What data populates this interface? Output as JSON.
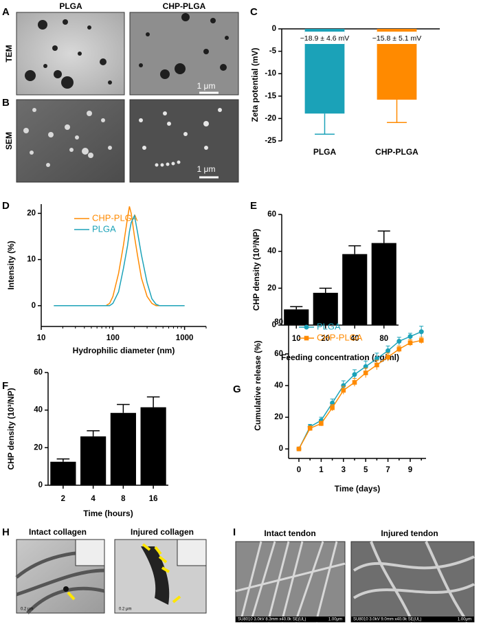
{
  "figure": {
    "panels": [
      "A",
      "B",
      "C",
      "D",
      "E",
      "F",
      "G",
      "H",
      "I"
    ],
    "ab": {
      "columns": [
        "PLGA",
        "CHP-PLGA"
      ],
      "rows": [
        "TEM",
        "SEM"
      ],
      "scale_bar": "1 μm"
    },
    "h": {
      "columns": [
        "Intact collagen",
        "Injured collagen"
      ],
      "scale_bar": "0.2 μm"
    },
    "i": {
      "columns": [
        "Intact tendon",
        "Injured tendon"
      ],
      "footers": [
        "SU8010 3.0kV 8.3mm x40.0k SE(UL)",
        "SU8010 3.0kV 9.0mm x40.0k SE(UL)"
      ],
      "scale_bar": "1.00μm"
    }
  },
  "chart_data": [
    {
      "type": "bar",
      "ylabel": "Zeta potential (mV)",
      "categories": [
        "PLGA",
        "CHP-PLGA"
      ],
      "values": [
        -18.9,
        -15.8
      ],
      "errors": [
        4.6,
        5.1
      ],
      "value_labels": [
        "−18.9 ± 4.6 mV",
        "−15.8 ± 5.1 mV"
      ],
      "colors": [
        "#1ba2b8",
        "#ff8a00"
      ],
      "ylim": [
        -25,
        0
      ],
      "yticks": [
        0,
        -5,
        -10,
        -15,
        -20,
        -25
      ]
    },
    {
      "type": "line",
      "xlabel": "Hydrophilic diameter (nm)",
      "ylabel": "Intensity (%)",
      "xscale": "log",
      "x": [
        15,
        50,
        80,
        90,
        100,
        120,
        140,
        160,
        170,
        180,
        200,
        220,
        250,
        300,
        350,
        400,
        450,
        1000
      ],
      "series": [
        {
          "name": "CHP-PLGA",
          "color": "#ff8a00",
          "values": [
            0,
            0,
            0,
            0.5,
            2,
            7,
            13,
            19,
            21.5,
            20,
            15,
            11,
            6,
            2,
            0.5,
            0,
            0,
            0
          ]
        },
        {
          "name": "PLGA",
          "color": "#1ba2b8",
          "values": [
            0,
            0,
            0,
            0,
            0.5,
            3,
            8,
            13,
            16,
            18,
            19.5,
            16,
            11,
            5,
            1.5,
            0.3,
            0,
            0
          ]
        }
      ],
      "xlim": [
        10,
        2000
      ],
      "xticks": [
        10,
        100,
        1000
      ],
      "ylim": [
        -4.5,
        22
      ],
      "yticks": [
        0,
        10,
        20
      ],
      "legend": "upper-left"
    },
    {
      "type": "bar",
      "xlabel": "Feeding concentration (μg/ml)",
      "ylabel": "CHP density (10³/NP)",
      "categories": [
        10,
        20,
        40,
        80
      ],
      "values": [
        8.5,
        17.5,
        38.5,
        44.5
      ],
      "errors": [
        1.5,
        2.5,
        4.5,
        6.5
      ],
      "colors": [
        "#000000",
        "#000000",
        "#000000",
        "#000000"
      ],
      "ylim": [
        0,
        60
      ],
      "yticks": [
        0,
        20,
        40,
        60
      ]
    },
    {
      "type": "bar",
      "xlabel": "Time (hours)",
      "ylabel": "CHP density (10³/NP)",
      "categories": [
        2,
        4,
        8,
        16
      ],
      "values": [
        12.5,
        26,
        38.5,
        41.5
      ],
      "errors": [
        1.5,
        3,
        4.5,
        5.5
      ],
      "colors": [
        "#000000",
        "#000000",
        "#000000",
        "#000000"
      ],
      "ylim": [
        0,
        60
      ],
      "yticks": [
        0,
        20,
        40,
        60
      ]
    },
    {
      "type": "line",
      "xlabel": "Time (days)",
      "ylabel": "Cumulative release (%)",
      "categories": [
        0,
        null,
        1,
        null,
        3,
        null,
        5,
        null,
        7,
        null,
        9,
        null
      ],
      "series": [
        {
          "name": "PLGA",
          "color": "#1ba2b8",
          "marker": "circle",
          "values": [
            0,
            14,
            18,
            29,
            40,
            47,
            52,
            57,
            62,
            68,
            71,
            74
          ],
          "errors": [
            1,
            1.5,
            2,
            2.5,
            3,
            3,
            3.5,
            3.5,
            3,
            2.5,
            2,
            3.5
          ]
        },
        {
          "name": "CHP-PLGA",
          "color": "#ff8a00",
          "marker": "square",
          "values": [
            0,
            13,
            16,
            26,
            37,
            42,
            48,
            53,
            58,
            63,
            67,
            68.5
          ],
          "errors": [
            1,
            1.5,
            1.5,
            2,
            2.5,
            2.5,
            3,
            3,
            2.5,
            2,
            2,
            2
          ]
        }
      ],
      "ylim": [
        -6,
        86
      ],
      "yticks": [
        0,
        20,
        40,
        60,
        80
      ],
      "legend": "upper-left"
    }
  ]
}
